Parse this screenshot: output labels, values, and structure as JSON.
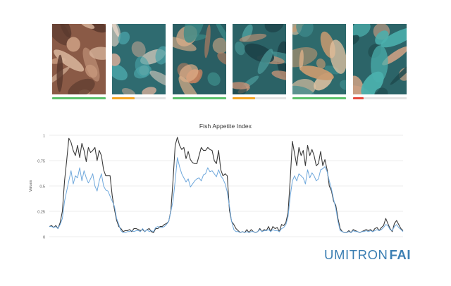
{
  "thumbnails": [
    {
      "status_color": "#5cc26b",
      "level": 1.0,
      "palette": [
        "#8a5a46",
        "#c89a7e",
        "#5c3a2e",
        "#d7b49b"
      ]
    },
    {
      "status_color": "#f5a623",
      "level": 0.42,
      "palette": [
        "#2f6b70",
        "#c8a896",
        "#4aa3a8",
        "#e8d5c6"
      ]
    },
    {
      "status_color": "#5cc26b",
      "level": 1.0,
      "palette": [
        "#2a5e63",
        "#c08060",
        "#e0b08a",
        "#3c8a88"
      ]
    },
    {
      "status_color": "#f5a623",
      "level": 0.42,
      "palette": [
        "#2b6266",
        "#4a9a9a",
        "#c89478",
        "#1d4349"
      ]
    },
    {
      "status_color": "#5cc26b",
      "level": 1.0,
      "palette": [
        "#2e6a6c",
        "#e2c3a2",
        "#c99a70",
        "#3e8b8d"
      ]
    },
    {
      "status_color": "#e8493c",
      "level": 0.2,
      "palette": [
        "#2c6468",
        "#d6a486",
        "#4bb0ad",
        "#1e4a4e"
      ]
    }
  ],
  "chart_data": {
    "type": "line",
    "title": "Fish Appetite Index",
    "ylabel": "Values",
    "ylim": [
      0,
      1
    ],
    "yticks": [
      "0",
      "0.25",
      "0.5",
      "0.75",
      "1"
    ],
    "grid": true,
    "series": [
      {
        "color": "#3a3a3a",
        "values": [
          0.1,
          0.11,
          0.09,
          0.11,
          0.08,
          0.14,
          0.25,
          0.55,
          0.75,
          0.97,
          0.93,
          0.85,
          0.8,
          0.9,
          0.78,
          0.92,
          0.85,
          0.74,
          0.88,
          0.83,
          0.85,
          0.88,
          0.75,
          0.85,
          0.8,
          0.66,
          0.6,
          0.6,
          0.6,
          0.4,
          0.27,
          0.16,
          0.1,
          0.08,
          0.05,
          0.06,
          0.06,
          0.07,
          0.05,
          0.08,
          0.08,
          0.07,
          0.06,
          0.07,
          0.05,
          0.07,
          0.08,
          0.05,
          0.04,
          0.08,
          0.08,
          0.1,
          0.1,
          0.12,
          0.13,
          0.15,
          0.26,
          0.55,
          0.9,
          0.98,
          0.9,
          0.86,
          0.88,
          0.77,
          0.84,
          0.76,
          0.73,
          0.72,
          0.72,
          0.8,
          0.88,
          0.85,
          0.85,
          0.88,
          0.86,
          0.85,
          0.75,
          0.72,
          0.85,
          0.66,
          0.6,
          0.62,
          0.6,
          0.26,
          0.15,
          0.12,
          0.08,
          0.06,
          0.04,
          0.05,
          0.04,
          0.07,
          0.04,
          0.07,
          0.05,
          0.04,
          0.05,
          0.08,
          0.05,
          0.07,
          0.06,
          0.1,
          0.05,
          0.1,
          0.08,
          0.09,
          0.05,
          0.12,
          0.11,
          0.14,
          0.24,
          0.57,
          0.94,
          0.82,
          0.7,
          0.88,
          0.8,
          0.85,
          0.7,
          0.9,
          0.8,
          0.86,
          0.8,
          0.7,
          0.72,
          0.84,
          0.7,
          0.76,
          0.66,
          0.5,
          0.45,
          0.35,
          0.31,
          0.18,
          0.08,
          0.05,
          0.04,
          0.04,
          0.06,
          0.04,
          0.07,
          0.06,
          0.05,
          0.04,
          0.05,
          0.06,
          0.07,
          0.06,
          0.07,
          0.05,
          0.08,
          0.09,
          0.06,
          0.09,
          0.11,
          0.18,
          0.13,
          0.08,
          0.05,
          0.13,
          0.16,
          0.12,
          0.08,
          0.06
        ]
      },
      {
        "color": "#6fa8dc",
        "values": [
          0.1,
          0.1,
          0.09,
          0.1,
          0.08,
          0.12,
          0.18,
          0.35,
          0.45,
          0.55,
          0.65,
          0.52,
          0.6,
          0.58,
          0.68,
          0.55,
          0.65,
          0.58,
          0.53,
          0.57,
          0.62,
          0.5,
          0.45,
          0.55,
          0.62,
          0.5,
          0.46,
          0.45,
          0.4,
          0.35,
          0.3,
          0.18,
          0.12,
          0.06,
          0.04,
          0.04,
          0.05,
          0.05,
          0.06,
          0.05,
          0.06,
          0.06,
          0.05,
          0.08,
          0.05,
          0.07,
          0.05,
          0.06,
          0.05,
          0.09,
          0.1,
          0.09,
          0.09,
          0.1,
          0.12,
          0.15,
          0.25,
          0.35,
          0.55,
          0.78,
          0.69,
          0.62,
          0.58,
          0.54,
          0.57,
          0.49,
          0.52,
          0.55,
          0.57,
          0.58,
          0.55,
          0.61,
          0.62,
          0.68,
          0.64,
          0.65,
          0.62,
          0.59,
          0.66,
          0.6,
          0.57,
          0.52,
          0.44,
          0.3,
          0.15,
          0.07,
          0.05,
          0.05,
          0.04,
          0.05,
          0.04,
          0.05,
          0.04,
          0.05,
          0.05,
          0.04,
          0.05,
          0.07,
          0.05,
          0.06,
          0.06,
          0.07,
          0.05,
          0.07,
          0.06,
          0.06,
          0.05,
          0.08,
          0.09,
          0.12,
          0.2,
          0.4,
          0.55,
          0.6,
          0.55,
          0.62,
          0.6,
          0.58,
          0.52,
          0.66,
          0.58,
          0.63,
          0.6,
          0.55,
          0.57,
          0.66,
          0.67,
          0.69,
          0.64,
          0.55,
          0.47,
          0.37,
          0.28,
          0.15,
          0.06,
          0.05,
          0.04,
          0.04,
          0.05,
          0.04,
          0.06,
          0.05,
          0.05,
          0.04,
          0.05,
          0.05,
          0.06,
          0.05,
          0.06,
          0.05,
          0.06,
          0.07,
          0.06,
          0.07,
          0.09,
          0.12,
          0.11,
          0.07,
          0.06,
          0.1,
          0.12,
          0.09,
          0.07,
          0.05
        ]
      }
    ]
  },
  "brand": {
    "part1": "UMITRON",
    "part2": "FAI"
  }
}
